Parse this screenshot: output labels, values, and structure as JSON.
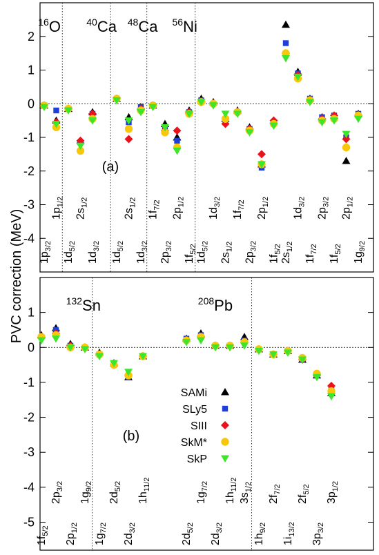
{
  "chart_data": {
    "type": "scatter",
    "ylabel": "PVC correction (MeV)",
    "series": [
      {
        "name": "SAMi",
        "color": "#000000",
        "marker": "triangle-up"
      },
      {
        "name": "SLy5",
        "color": "#1f3fd8",
        "marker": "square"
      },
      {
        "name": "SIII",
        "color": "#e8141c",
        "marker": "diamond"
      },
      {
        "name": "SkM*",
        "color": "#f8c70a",
        "marker": "circle"
      },
      {
        "name": "SkP",
        "color": "#3ee62a",
        "marker": "triangle-down"
      }
    ],
    "panels": [
      {
        "id": "a",
        "panel_label": "(a)",
        "ylim": [
          -5,
          3
        ],
        "yticks": [
          -4,
          -3,
          -2,
          -1,
          0,
          1,
          2
        ],
        "nuclei": [
          {
            "name": "O",
            "mass": "16",
            "x": 0.5
          },
          {
            "name": "Ca",
            "mass": "40",
            "x": 4.5
          },
          {
            "name": "Ca",
            "mass": "48",
            "x": 7.9
          },
          {
            "name": "Ni",
            "mass": "56",
            "x": 11.6
          }
        ],
        "separators": [
          2.5,
          6.5,
          9.5,
          13.5
        ],
        "levels": [
          {
            "x": 1,
            "main": "1p",
            "sub": "3/2",
            "row": "low",
            "values": {
              "SAMi": -0.05,
              "SLy5": -0.05,
              "SIII": -0.05,
              "SkM*": -0.05,
              "SkP": -0.1
            }
          },
          {
            "x": 2,
            "main": "1p",
            "sub": "1/2",
            "row": "high",
            "values": {
              "SAMi": -0.5,
              "SLy5": -0.2,
              "SIII": -0.55,
              "SkM*": -0.7,
              "SkP": -0.6
            }
          },
          {
            "x": 3,
            "main": "1d",
            "sub": "5/2",
            "row": "low",
            "values": {
              "SAMi": -0.15,
              "SLy5": -0.15,
              "SIII": -0.15,
              "SkM*": -0.15,
              "SkP": -0.2
            }
          },
          {
            "x": 4,
            "main": "2s",
            "sub": "1/2",
            "row": "high",
            "values": {
              "SAMi": -1.1,
              "SLy5": -1.15,
              "SIII": -1.1,
              "SkM*": -1.4,
              "SkP": -1.25
            }
          },
          {
            "x": 5,
            "main": "1d",
            "sub": "3/2",
            "row": "low",
            "values": {
              "SAMi": -0.25,
              "SLy5": -0.3,
              "SIII": -0.3,
              "SkM*": -0.45,
              "SkP": -0.5
            }
          },
          {
            "x": 7,
            "main": "1d",
            "sub": "5/2",
            "row": "low",
            "values": {
              "SAMi": 0.15,
              "SLy5": 0.15,
              "SIII": 0.15,
              "SkM*": 0.15,
              "SkP": 0.1
            }
          },
          {
            "x": 8,
            "main": "2s",
            "sub": "1/2",
            "row": "high",
            "values": {
              "SAMi": -0.4,
              "SLy5": -0.55,
              "SIII": -1.05,
              "SkM*": -0.75,
              "SkP": -0.5
            }
          },
          {
            "x": 9,
            "main": "1d",
            "sub": "3/2",
            "row": "low",
            "values": {
              "SAMi": -0.1,
              "SLy5": -0.1,
              "SIII": -0.15,
              "SkM*": -0.2,
              "SkP": -0.25
            }
          },
          {
            "x": 10,
            "main": "1f",
            "sub": "7/2",
            "row": "high",
            "values": {
              "SAMi": -0.05,
              "SLy5": -0.05,
              "SIII": -0.05,
              "SkM*": -0.05,
              "SkP": -0.1
            }
          },
          {
            "x": 11,
            "main": "2p",
            "sub": "3/2",
            "row": "low",
            "values": {
              "SAMi": -0.6,
              "SLy5": -0.75,
              "SIII": -0.8,
              "SkM*": -0.85,
              "SkP": -0.7
            }
          },
          {
            "x": 12,
            "main": "2p",
            "sub": "1/2",
            "row": "high",
            "values": {
              "SAMi": -1.0,
              "SLy5": -1.1,
              "SIII": -0.8,
              "SkM*": -1.3,
              "SkP": -1.4
            }
          },
          {
            "x": 13,
            "main": "1f",
            "sub": "5/2",
            "row": "low",
            "values": {
              "SAMi": -0.2,
              "SLy5": -0.25,
              "SIII": -0.25,
              "SkM*": -0.3,
              "SkP": -0.3
            }
          },
          {
            "x": 14,
            "main": "1d",
            "sub": "5/2",
            "row": "low",
            "values": {
              "SAMi": 0.15,
              "SLy5": 0.1,
              "SIII": 0.05,
              "SkM*": 0.05,
              "SkP": 0.05
            }
          },
          {
            "x": 15,
            "main": "1d",
            "sub": "3/2",
            "row": "high",
            "values": {
              "SAMi": 0.05,
              "SLy5": 0.0,
              "SIII": 0.0,
              "SkM*": 0.0,
              "SkP": -0.05
            }
          },
          {
            "x": 16,
            "main": "2s",
            "sub": "1/2",
            "row": "low",
            "values": {
              "SAMi": -0.45,
              "SLy5": -0.55,
              "SIII": -0.6,
              "SkM*": -0.45,
              "SkP": -0.3
            }
          },
          {
            "x": 17,
            "main": "1f",
            "sub": "7/2",
            "row": "high",
            "values": {
              "SAMi": -0.2,
              "SLy5": -0.25,
              "SIII": -0.25,
              "SkM*": -0.25,
              "SkP": -0.3
            }
          },
          {
            "x": 18,
            "main": "2p",
            "sub": "3/2",
            "row": "low",
            "values": {
              "SAMi": -0.7,
              "SLy5": -0.75,
              "SIII": -0.75,
              "SkM*": -0.8,
              "SkP": -0.85
            }
          },
          {
            "x": 19,
            "main": "2p",
            "sub": "1/2",
            "row": "high",
            "values": {
              "SAMi": -1.8,
              "SLy5": -1.9,
              "SIII": -1.5,
              "SkM*": -1.8,
              "SkP": -1.8
            }
          },
          {
            "x": 20,
            "main": "1f",
            "sub": "5/2",
            "row": "low",
            "values": {
              "SAMi": -0.5,
              "SLy5": -0.55,
              "SIII": -0.5,
              "SkM*": -0.6,
              "SkP": -0.65
            }
          },
          {
            "x": 21,
            "main": "2s",
            "sub": "1/2",
            "row": "low",
            "values": {
              "SAMi": 2.35,
              "SLy5": 1.8,
              "SIII": 1.5,
              "SkM*": 1.5,
              "SkP": 1.35
            }
          },
          {
            "x": 22,
            "main": "1d",
            "sub": "3/2",
            "row": "high",
            "values": {
              "SAMi": 0.95,
              "SLy5": 0.9,
              "SIII": 0.85,
              "SkM*": 0.75,
              "SkP": 0.8
            }
          },
          {
            "x": 23,
            "main": "1f",
            "sub": "7/2",
            "row": "low",
            "values": {
              "SAMi": 0.15,
              "SLy5": 0.15,
              "SIII": 0.1,
              "SkM*": 0.1,
              "SkP": 0.05
            }
          },
          {
            "x": 24,
            "main": "2p",
            "sub": "3/2",
            "row": "high",
            "values": {
              "SAMi": -0.4,
              "SLy5": -0.4,
              "SIII": -0.45,
              "SkM*": -0.5,
              "SkP": -0.55
            }
          },
          {
            "x": 25,
            "main": "1f",
            "sub": "5/2",
            "row": "low",
            "values": {
              "SAMi": -0.35,
              "SLy5": -0.35,
              "SIII": -0.35,
              "SkM*": -0.45,
              "SkP": -0.5
            }
          },
          {
            "x": 26,
            "main": "2p",
            "sub": "1/2",
            "row": "high",
            "values": {
              "SAMi": -1.7,
              "SLy5": -1.0,
              "SIII": -1.05,
              "SkM*": -1.3,
              "SkP": -0.9
            }
          },
          {
            "x": 27,
            "main": "1g",
            "sub": "9/2",
            "row": "low",
            "values": {
              "SAMi": -0.3,
              "SLy5": -0.3,
              "SIII": -0.35,
              "SkM*": -0.35,
              "SkP": -0.45
            }
          }
        ]
      },
      {
        "id": "b",
        "panel_label": "(b)",
        "ylim": [
          -5.8,
          2
        ],
        "yticks": [
          -5,
          -4,
          -3,
          -2,
          -1,
          0,
          1
        ],
        "nuclei": [
          {
            "name": "Sn",
            "mass": "132",
            "x": 2.7
          },
          {
            "name": "Pb",
            "mass": "208",
            "x": 11.8
          }
        ],
        "separators": [
          4.5,
          15.5
        ],
        "levels": [
          {
            "x": 1,
            "main": "1f",
            "sub": "5/2",
            "row": "low",
            "values": {
              "SAMi": 0.35,
              "SLy5": 0.3,
              "SIII": 0.3,
              "SkM*": 0.3,
              "SkP": 0.2
            }
          },
          {
            "x": 2,
            "main": "2p",
            "sub": "3/2",
            "row": "high",
            "values": {
              "SAMi": 0.55,
              "SLy5": 0.5,
              "SIII": 0.4,
              "SkM*": 0.35,
              "SkP": 0.25
            }
          },
          {
            "x": 3,
            "main": "2p",
            "sub": "1/2",
            "row": "low",
            "values": {
              "SAMi": 0.1,
              "SLy5": 0.05,
              "SIII": 0.05,
              "SkM*": 0.0,
              "SkP": 0.0
            }
          },
          {
            "x": 4,
            "main": "1g",
            "sub": "9/2",
            "row": "high",
            "values": {
              "SAMi": 0.0,
              "SLy5": 0.0,
              "SIII": 0.0,
              "SkM*": 0.0,
              "SkP": -0.05
            }
          },
          {
            "x": 5,
            "main": "1g",
            "sub": "7/2",
            "row": "low",
            "values": {
              "SAMi": -0.15,
              "SLy5": -0.2,
              "SIII": -0.2,
              "SkM*": -0.2,
              "SkP": -0.25
            }
          },
          {
            "x": 6,
            "main": "2d",
            "sub": "5/2",
            "row": "high",
            "values": {
              "SAMi": -0.45,
              "SLy5": -0.45,
              "SIII": -0.5,
              "SkM*": -0.5,
              "SkP": -0.45
            }
          },
          {
            "x": 7,
            "main": "2d",
            "sub": "3/2",
            "row": "low",
            "values": {
              "SAMi": -0.85,
              "SLy5": -0.85,
              "SIII": -0.8,
              "SkM*": -0.8,
              "SkP": -0.7
            }
          },
          {
            "x": 8,
            "main": "1h",
            "sub": "11/2",
            "row": "high",
            "values": {
              "SAMi": -0.25,
              "SLy5": -0.25,
              "SIII": -0.25,
              "SkM*": -0.25,
              "SkP": -0.25
            }
          },
          {
            "x": 11,
            "main": "2d",
            "sub": "5/2",
            "row": "low",
            "values": {
              "SAMi": 0.25,
              "SLy5": 0.25,
              "SIII": 0.2,
              "SkM*": 0.2,
              "SkP": 0.15
            }
          },
          {
            "x": 12,
            "main": "1g",
            "sub": "7/2",
            "row": "high",
            "values": {
              "SAMi": 0.4,
              "SLy5": 0.35,
              "SIII": 0.3,
              "SkM*": 0.3,
              "SkP": 0.2
            }
          },
          {
            "x": 13,
            "main": "2d",
            "sub": "3/2",
            "row": "low",
            "values": {
              "SAMi": 0.05,
              "SLy5": 0.05,
              "SIII": 0.05,
              "SkM*": 0.05,
              "SkP": 0.0
            }
          },
          {
            "x": 14,
            "main": "1h",
            "sub": "11/2",
            "row": "high",
            "values": {
              "SAMi": 0.05,
              "SLy5": 0.05,
              "SIII": 0.05,
              "SkM*": 0.05,
              "SkP": 0.0
            }
          },
          {
            "x": 15,
            "main": "3s",
            "sub": "1/2",
            "row": "high",
            "values": {
              "SAMi": 0.3,
              "SLy5": 0.2,
              "SIII": 0.15,
              "SkM*": 0.15,
              "SkP": 0.05
            }
          },
          {
            "x": 16,
            "main": "1h",
            "sub": "9/2",
            "row": "low",
            "values": {
              "SAMi": -0.05,
              "SLy5": -0.05,
              "SIII": -0.05,
              "SkM*": -0.05,
              "SkP": -0.1
            }
          },
          {
            "x": 17,
            "main": "2f",
            "sub": "7/2",
            "row": "high",
            "values": {
              "SAMi": -0.2,
              "SLy5": -0.2,
              "SIII": -0.2,
              "SkM*": -0.2,
              "SkP": -0.2
            }
          },
          {
            "x": 18,
            "main": "1i",
            "sub": "13/2",
            "row": "low",
            "values": {
              "SAMi": -0.1,
              "SLy5": -0.1,
              "SIII": -0.1,
              "SkM*": -0.1,
              "SkP": -0.15
            }
          },
          {
            "x": 19,
            "main": "2f",
            "sub": "5/2",
            "row": "high",
            "values": {
              "SAMi": -0.35,
              "SLy5": -0.35,
              "SIII": -0.35,
              "SkM*": -0.3,
              "SkP": -0.35
            }
          },
          {
            "x": 20,
            "main": "3p",
            "sub": "3/2",
            "row": "low",
            "values": {
              "SAMi": -0.8,
              "SLy5": -0.8,
              "SIII": -0.8,
              "SkM*": -0.75,
              "SkP": -0.85
            }
          },
          {
            "x": 21,
            "main": "3p",
            "sub": "1/2",
            "row": "high",
            "values": {
              "SAMi": -1.3,
              "SLy5": -1.2,
              "SIII": -1.1,
              "SkM*": -1.25,
              "SkP": -1.4
            }
          }
        ]
      }
    ]
  }
}
